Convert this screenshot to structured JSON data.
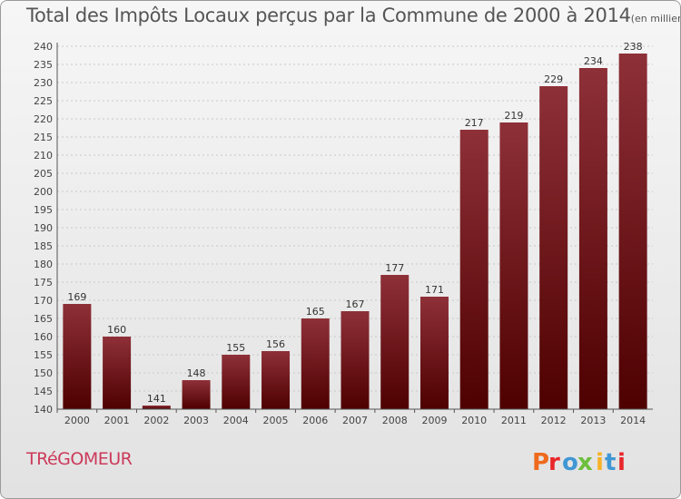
{
  "header": {
    "title": "Total des Impôts Locaux perçus par la Commune de 2000 à 2014",
    "unit": "(en milliers d'€)"
  },
  "commune": "TRéGOMEUR",
  "brand": {
    "logo_text": "Proxiti",
    "colors": [
      "#ef6a1d",
      "#e8262a",
      "#3f97d4",
      "#6cbf3c",
      "#f7b228",
      "#3f97d4",
      "#e8262a"
    ]
  },
  "chart_data": {
    "type": "bar",
    "title": "Total des Impôts Locaux perçus par la Commune de 2000 à 2014",
    "xlabel": "",
    "ylabel": "",
    "unit": "(en milliers d'€)",
    "categories": [
      "2000",
      "2001",
      "2002",
      "2003",
      "2004",
      "2005",
      "2006",
      "2007",
      "2008",
      "2009",
      "2010",
      "2011",
      "2012",
      "2013",
      "2014"
    ],
    "values": [
      169,
      160,
      141,
      148,
      155,
      156,
      165,
      167,
      177,
      171,
      217,
      219,
      229,
      234,
      238
    ],
    "ylim": [
      140,
      240
    ],
    "yticks": [
      140,
      145,
      150,
      155,
      160,
      165,
      170,
      175,
      180,
      185,
      190,
      195,
      200,
      205,
      210,
      215,
      220,
      225,
      230,
      235,
      240
    ],
    "grid": true,
    "bar_color": "#7e2730"
  }
}
